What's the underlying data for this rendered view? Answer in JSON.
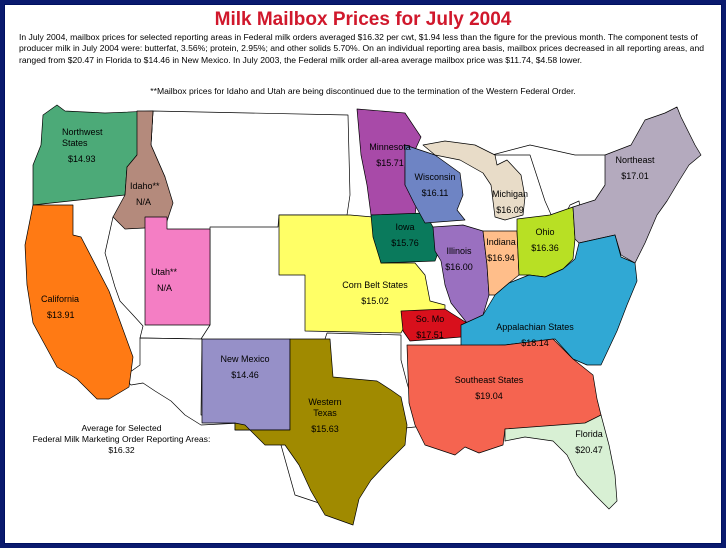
{
  "title": "Milk Mailbox Prices for July 2004",
  "intro": "In July 2004, mailbox prices for selected reporting areas in Federal milk orders averaged $16.32 per cwt, $1.94 less than the figure for the previous month. The component tests of producer milk in July 2004 were: butterfat, 3.56%; protein, 2.95%; and other solids 5.70%. On an individual reporting area basis, mailbox prices decreased in all reporting areas, and ranged from $20.47 in Florida to $14.46 in New Mexico.  In July 2003, the Federal milk order all-area average mailbox price was $11.74, $4.58 lower.",
  "footnote": "**Mailbox prices for Idaho and Utah are being discontinued due to the termination of the Western Federal Order.",
  "average": {
    "line1": "Average for Selected",
    "line2": "Federal Milk Marketing Order Reporting Areas:",
    "value": "$16.32"
  },
  "regions": [
    {
      "id": "northwest",
      "name_lines": [
        "Northwest",
        "States"
      ],
      "price": "$14.93",
      "color": "#4caa78"
    },
    {
      "id": "idaho",
      "name_lines": [
        "Idaho**"
      ],
      "price": "N/A",
      "color": "#b48a7c"
    },
    {
      "id": "california",
      "name_lines": [
        "California"
      ],
      "price": "$13.91",
      "color": "#ff7a14"
    },
    {
      "id": "utah",
      "name_lines": [
        "Utah**"
      ],
      "price": "N/A",
      "color": "#f47ec4"
    },
    {
      "id": "new-mexico",
      "name_lines": [
        "New Mexico"
      ],
      "price": "$14.46",
      "color": "#9690c8"
    },
    {
      "id": "western-texas",
      "name_lines": [
        "Western",
        "Texas"
      ],
      "price": "$15.63",
      "color": "#a08a00"
    },
    {
      "id": "corn-belt",
      "name_lines": [
        "Corn Belt States"
      ],
      "price": "$15.02",
      "color": "#ffff66"
    },
    {
      "id": "minnesota",
      "name_lines": [
        "Minnesota"
      ],
      "price": "$15.71",
      "color": "#a84aa8"
    },
    {
      "id": "iowa",
      "name_lines": [
        "Iowa"
      ],
      "price": "$15.76",
      "color": "#0a7a5c"
    },
    {
      "id": "wisconsin",
      "name_lines": [
        "Wisconsin"
      ],
      "price": "$16.11",
      "color": "#6e84c4"
    },
    {
      "id": "michigan",
      "name_lines": [
        "Michigan"
      ],
      "price": "$16.09",
      "color": "#e8dcc8"
    },
    {
      "id": "illinois",
      "name_lines": [
        "Illinois"
      ],
      "price": "$16.00",
      "color": "#9a70c0"
    },
    {
      "id": "indiana",
      "name_lines": [
        "Indiana"
      ],
      "price": "$16.94",
      "color": "#ffbe8a"
    },
    {
      "id": "ohio",
      "name_lines": [
        "Ohio"
      ],
      "price": "$16.36",
      "color": "#b8e024"
    },
    {
      "id": "northeast",
      "name_lines": [
        "Northeast"
      ],
      "price": "$17.01",
      "color": "#b4aabe"
    },
    {
      "id": "so-mo",
      "name_lines": [
        "So. Mo"
      ],
      "price": "$17.51",
      "color": "#d8101c"
    },
    {
      "id": "appalachian",
      "name_lines": [
        "Appalachian States"
      ],
      "price": "$18.14",
      "color": "#30a8d4"
    },
    {
      "id": "southeast",
      "name_lines": [
        "Southeast States"
      ],
      "price": "$19.04",
      "color": "#f56450"
    },
    {
      "id": "florida",
      "name_lines": [
        "Florida"
      ],
      "price": "$20.47",
      "color": "#d8f0d4"
    }
  ]
}
